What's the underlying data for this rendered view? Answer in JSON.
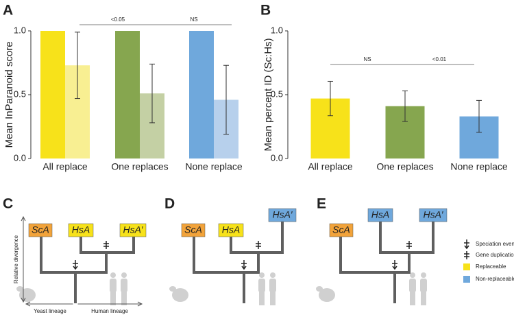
{
  "chart_data": [
    {
      "type": "bar",
      "panel": "A",
      "ylabel": "Mean InParanoid score",
      "categories": [
        "All replace",
        "One replaces",
        "None replace"
      ],
      "series": [
        {
          "colors": [
            "#f7e21a",
            "#86a64f",
            "#6fa8dc"
          ],
          "values": [
            1.0,
            1.0,
            1.0
          ]
        },
        {
          "colors": [
            "#f8ef92",
            "#c4d0a4",
            "#b7d0ec"
          ],
          "values": [
            0.73,
            0.51,
            0.46
          ],
          "errors": [
            0.26,
            0.23,
            0.27
          ]
        }
      ],
      "ylim": [
        0,
        1.0
      ],
      "yticks": [
        {
          "value": 0,
          "label": "0.0"
        },
        {
          "value": 0.5,
          "label": "0.5"
        },
        {
          "value": 1.0,
          "label": "1.0"
        }
      ],
      "annotations": [
        "<0.05",
        "NS"
      ]
    },
    {
      "type": "bar",
      "panel": "B",
      "ylabel": "Mean percent ID (Sc:Hs)",
      "categories": [
        "All replace",
        "One replaces",
        "None replace"
      ],
      "series": [
        {
          "colors": [
            "#f7e21a",
            "#86a64f",
            "#6fa8dc"
          ],
          "values": [
            0.47,
            0.41,
            0.33
          ],
          "errors": [
            0.135,
            0.12,
            0.125
          ]
        }
      ],
      "ylim": [
        0,
        1.0
      ],
      "yticks": [
        {
          "value": 0,
          "label": "0.0"
        },
        {
          "value": 0.5,
          "label": "0.5"
        },
        {
          "value": 1.0,
          "label": "1.0"
        }
      ],
      "annotations": [
        "NS",
        "<0.01"
      ]
    }
  ],
  "diagrams": {
    "panels": [
      {
        "label": "C",
        "leaves": [
          {
            "text": "ScA",
            "color": "#f2a33a"
          },
          {
            "text": "HsA",
            "color": "#f7e21a"
          },
          {
            "text": "HsA′",
            "color": "#f7e21a"
          }
        ]
      },
      {
        "label": "D",
        "leaves": [
          {
            "text": "ScA",
            "color": "#f2a33a"
          },
          {
            "text": "HsA",
            "color": "#f7e21a"
          },
          {
            "text": "HsA′",
            "color": "#6fa8dc"
          }
        ]
      },
      {
        "label": "E",
        "leaves": [
          {
            "text": "ScA",
            "color": "#f2a33a"
          },
          {
            "text": "HsA",
            "color": "#6fa8dc"
          },
          {
            "text": "HsA′",
            "color": "#6fa8dc"
          }
        ]
      }
    ],
    "axis_label": "Relative divergence",
    "lineages": [
      "Yeast lineage",
      "Human lineage"
    ],
    "legend": [
      {
        "text": "Speciation event"
      },
      {
        "text": "Gene duplication"
      },
      {
        "text": "Replaceable",
        "color": "#f7e21a"
      },
      {
        "text": "Non-replaceable",
        "color": "#6fa8dc"
      }
    ]
  }
}
